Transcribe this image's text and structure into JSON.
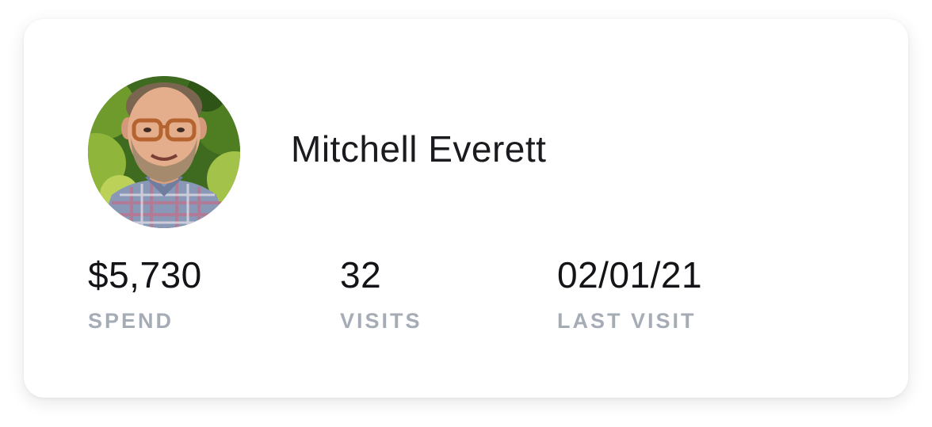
{
  "profile": {
    "name": "Mitchell Everett",
    "avatar_icon": "customer-avatar-photo"
  },
  "stats": {
    "spend": {
      "value": "$5,730",
      "label": "SPEND"
    },
    "visits": {
      "value": "32",
      "label": "VISITS"
    },
    "last_visit": {
      "value": "02/01/21",
      "label": "LAST VISIT"
    }
  },
  "colors": {
    "card_background": "#ffffff",
    "name_text": "#1b1b1f",
    "value_text": "#141418",
    "label_text": "#a6acb6"
  }
}
